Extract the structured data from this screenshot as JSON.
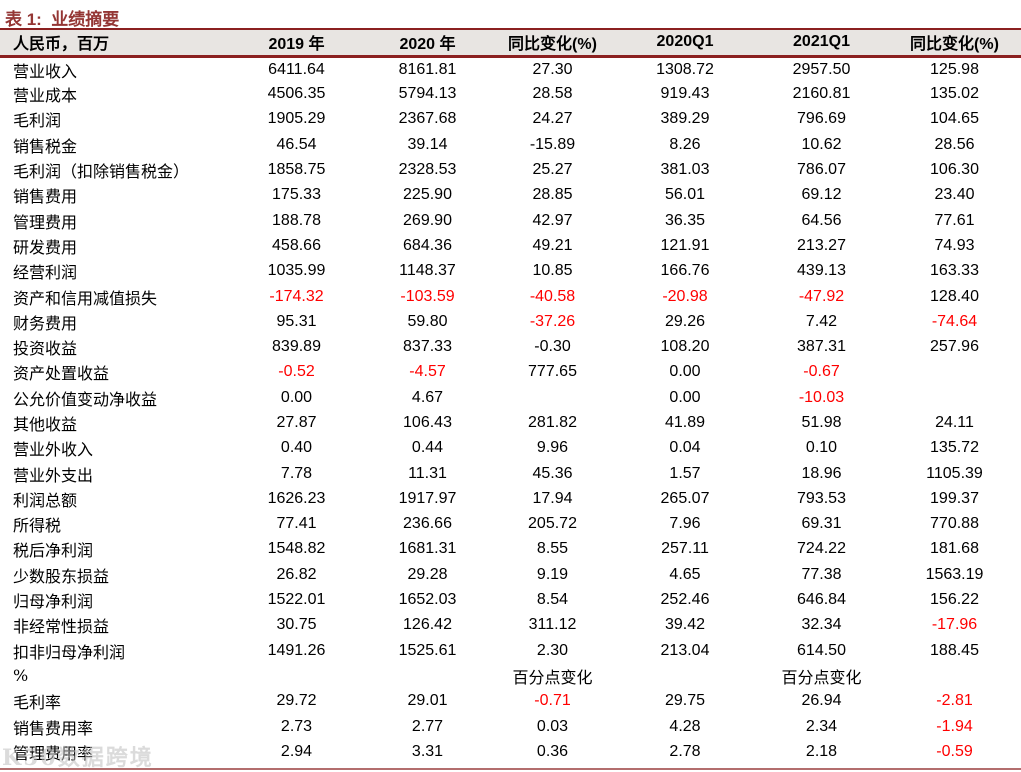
{
  "title": "表 1:  业绩摘要",
  "watermark": "K50数据跨境",
  "colors": {
    "title_maroon": "#943634",
    "rule_maroon": "#8B2020",
    "header_bg": "#E8E5E2",
    "negative_red": "#FF0000",
    "text_black": "#000000"
  },
  "table": {
    "headers": [
      "人民币，百万",
      "2019 年",
      "2020 年",
      "同比变化(%)",
      "2020Q1",
      "2021Q1",
      "同比变化(%)"
    ],
    "rows": [
      [
        "营业收入",
        "6411.64",
        "8161.81",
        "27.30",
        "1308.72",
        "2957.50",
        "125.98"
      ],
      [
        "营业成本",
        "4506.35",
        "5794.13",
        "28.58",
        "919.43",
        "2160.81",
        "135.02"
      ],
      [
        "毛利润",
        "1905.29",
        "2367.68",
        "24.27",
        "389.29",
        "796.69",
        "104.65"
      ],
      [
        "销售税金",
        "46.54",
        "39.14",
        "-15.89",
        "8.26",
        "10.62",
        "28.56"
      ],
      [
        "毛利润（扣除销售税金）",
        "1858.75",
        "2328.53",
        "25.27",
        "381.03",
        "786.07",
        "106.30"
      ],
      [
        "销售费用",
        "175.33",
        "225.90",
        "28.85",
        "56.01",
        "69.12",
        "23.40"
      ],
      [
        "管理费用",
        "188.78",
        "269.90",
        "42.97",
        "36.35",
        "64.56",
        "77.61"
      ],
      [
        "研发费用",
        "458.66",
        "684.36",
        "49.21",
        "121.91",
        "213.27",
        "74.93"
      ],
      [
        "经营利润",
        "1035.99",
        "1148.37",
        "10.85",
        "166.76",
        "439.13",
        "163.33"
      ],
      [
        "资产和信用减值损失",
        "-174.32",
        "-103.59",
        "-40.58",
        "-20.98",
        "-47.92",
        "128.40"
      ],
      [
        "财务费用",
        "95.31",
        "59.80",
        "-37.26",
        "29.26",
        "7.42",
        "-74.64"
      ],
      [
        "投资收益",
        "839.89",
        "837.33",
        "-0.30",
        "108.20",
        "387.31",
        "257.96"
      ],
      [
        "资产处置收益",
        "-0.52",
        "-4.57",
        "777.65",
        "0.00",
        "-0.67",
        ""
      ],
      [
        "公允价值变动净收益",
        "0.00",
        "4.67",
        "",
        "0.00",
        "-10.03",
        ""
      ],
      [
        "其他收益",
        "27.87",
        "106.43",
        "281.82",
        "41.89",
        "51.98",
        "24.11"
      ],
      [
        "营业外收入",
        "0.40",
        "0.44",
        "9.96",
        "0.04",
        "0.10",
        "135.72"
      ],
      [
        "营业外支出",
        "7.78",
        "11.31",
        "45.36",
        "1.57",
        "18.96",
        "1105.39"
      ],
      [
        "利润总额",
        "1626.23",
        "1917.97",
        "17.94",
        "265.07",
        "793.53",
        "199.37"
      ],
      [
        "所得税",
        "77.41",
        "236.66",
        "205.72",
        "7.96",
        "69.31",
        "770.88"
      ],
      [
        "税后净利润",
        "1548.82",
        "1681.31",
        "8.55",
        "257.11",
        "724.22",
        "181.68"
      ],
      [
        "少数股东损益",
        "26.82",
        "29.28",
        "9.19",
        "4.65",
        "77.38",
        "1563.19"
      ],
      [
        "归母净利润",
        "1522.01",
        "1652.03",
        "8.54",
        "252.46",
        "646.84",
        "156.22"
      ],
      [
        "非经常性损益",
        "30.75",
        "126.42",
        "311.12",
        "39.42",
        "32.34",
        "-17.96"
      ],
      [
        "扣非归母净利润",
        "1491.26",
        "1525.61",
        "2.30",
        "213.04",
        "614.50",
        "188.45"
      ],
      [
        "%",
        "",
        "",
        "百分点变化",
        "",
        "百分点变化",
        ""
      ],
      [
        "毛利率",
        "29.72",
        "29.01",
        "-0.71",
        "29.75",
        "26.94",
        "-2.81"
      ],
      [
        "销售费用率",
        "2.73",
        "2.77",
        "0.03",
        "4.28",
        "2.34",
        "-1.94"
      ],
      [
        "管理费用率",
        "2.94",
        "3.31",
        "0.36",
        "2.78",
        "2.18",
        "-0.59"
      ]
    ],
    "red_cells": [
      [
        9,
        1
      ],
      [
        9,
        2
      ],
      [
        9,
        3
      ],
      [
        9,
        4
      ],
      [
        9,
        5
      ],
      [
        10,
        3
      ],
      [
        10,
        6
      ],
      [
        12,
        1
      ],
      [
        12,
        2
      ],
      [
        12,
        5
      ],
      [
        13,
        5
      ],
      [
        22,
        6
      ],
      [
        25,
        3
      ],
      [
        25,
        6
      ],
      [
        26,
        6
      ],
      [
        27,
        6
      ]
    ],
    "cjk_cells": [
      [
        24,
        3
      ],
      [
        24,
        5
      ]
    ]
  }
}
